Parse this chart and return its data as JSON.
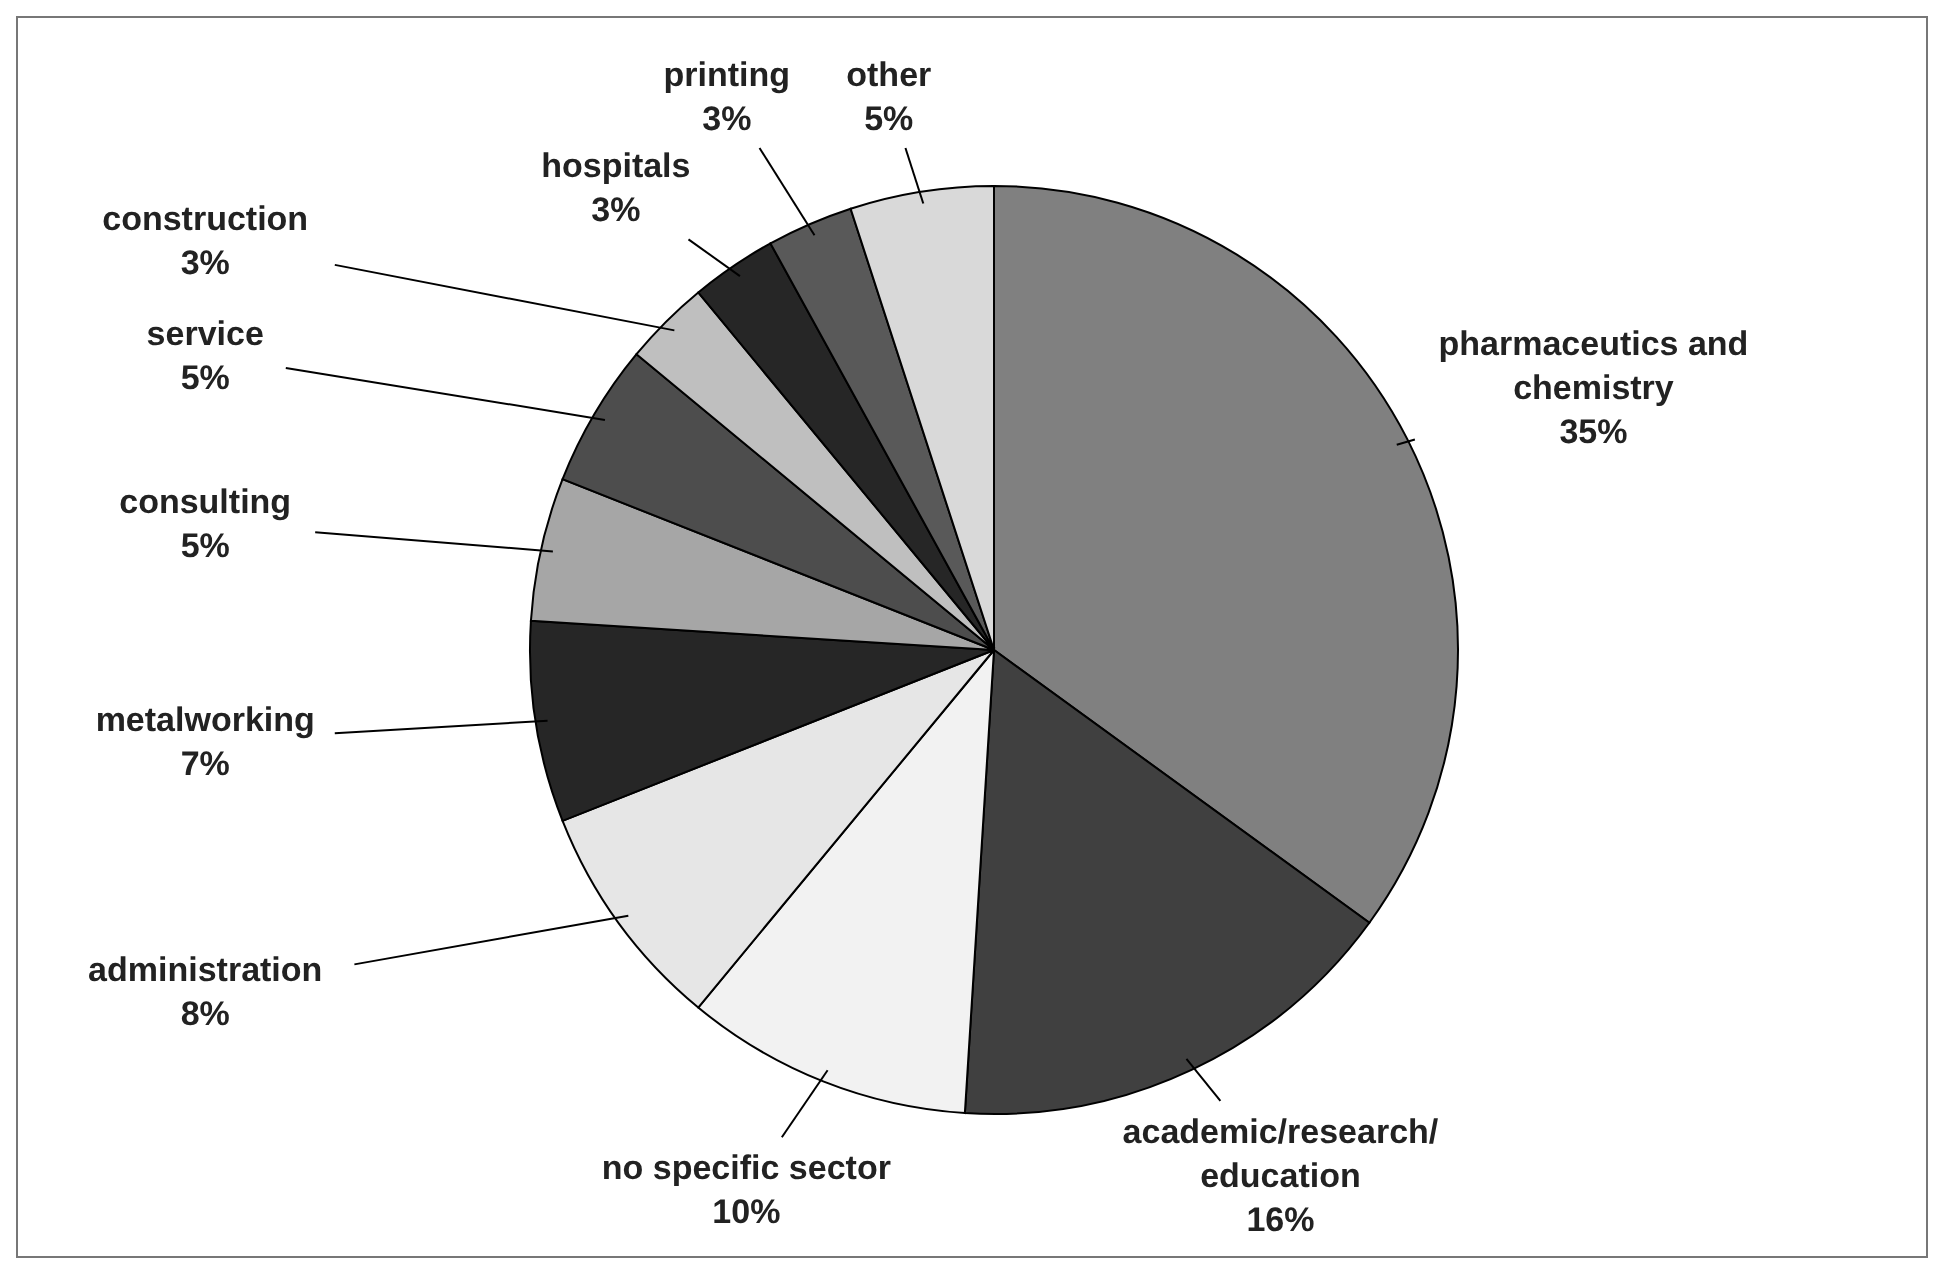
{
  "chart_data": {
    "type": "pie",
    "categories": [
      "pharmaceutics and chemistry",
      "academic/research/education",
      "no specific sector",
      "administration",
      "metalworking",
      "consulting",
      "service",
      "construction",
      "hospitals",
      "printing",
      "other"
    ],
    "values": [
      35,
      16,
      10,
      8,
      7,
      5,
      5,
      3,
      3,
      3,
      5
    ],
    "value_labels": [
      "35%",
      "16%",
      "10%",
      "8%",
      "7%",
      "5%",
      "5%",
      "3%",
      "3%",
      "3%",
      "5%"
    ],
    "colors": [
      "#808080",
      "#404040",
      "#f2f2f2",
      "#e6e6e6",
      "#262626",
      "#a6a6a6",
      "#4d4d4d",
      "#bfbfbf",
      "#262626",
      "#595959",
      "#d9d9d9"
    ],
    "data_labels": true
  }
}
